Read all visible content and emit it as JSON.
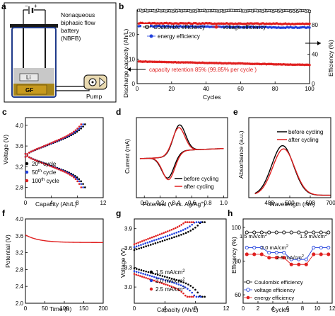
{
  "panels": {
    "a": {
      "letter": "a",
      "battery_text": [
        "Nonaqueous",
        "biphasic flow",
        "battery",
        "(NBFB)"
      ],
      "electrode_li": "Li",
      "electrode_gf": "GF",
      "pump_label": "Pump",
      "colors": {
        "electrolyte_top": "#c8c8c8",
        "electrolyte_bottom": "#a8861a",
        "vessel": "#1f3a8a",
        "lid": "#1a1a1a",
        "gf": "#c79a1e",
        "pump_fill": "#e8d9b0"
      }
    },
    "b": {
      "letter": "b",
      "ylabel_left": "Discharge capacity (Ah/L)",
      "ylabel_right": "Efficiency (%)",
      "xlabel": "Cycles",
      "legend": {
        "ce": "Coulombic efficiency",
        "ve": "voltage efficiency",
        "ee": "energy efficiency"
      },
      "annotation": "capacity retention 85% (99.85% per cycle )"
    },
    "c": {
      "letter": "c",
      "xlabel": "Capacity (Ah/L)",
      "ylabel": "Voltage (V)",
      "legend": [
        {
          "base": "20",
          "sup": "th",
          "rest": " cycle"
        },
        {
          "base": "50",
          "sup": "th",
          "rest": " cycle"
        },
        {
          "base": "100",
          "sup": "th",
          "rest": " cycle"
        }
      ]
    },
    "d": {
      "letter": "d",
      "xlabel": "Potential (V vs. Ag/Ag",
      "xlabel_sup": "+",
      "xlabel_end": ")",
      "ylabel": "Current (mA)",
      "legend": [
        "before cycling",
        "after cycling"
      ]
    },
    "e": {
      "letter": "e",
      "xlabel": "Wavelength (nm)",
      "ylabel": "Absorbance (a.u.)",
      "legend": [
        "before cycling",
        "after cycling"
      ]
    },
    "f": {
      "letter": "f",
      "xlabel": "Time (h)",
      "ylabel": "Potential (V)"
    },
    "g": {
      "letter": "g",
      "xlabel": "Capacity (Ah/L)",
      "ylabel": "Voltage (V)",
      "legend": [
        {
          "base": "1.5 mA/cm",
          "sup": "2"
        },
        {
          "base": "2.0 mA/cm",
          "sup": "2"
        },
        {
          "base": "2.5 mA/cm",
          "sup": "2"
        }
      ]
    },
    "h": {
      "letter": "h",
      "xlabel": "Cycles",
      "ylabel": "Efficiency (%)",
      "rate_labels": [
        {
          "base": "1.5 mA/cm",
          "sup": "2"
        },
        {
          "base": "2.0 mA/cm",
          "sup": "2"
        },
        {
          "base": "2.5 mA/cm",
          "sup": "2"
        },
        {
          "base": "1.5 mA/cm",
          "sup": "2"
        }
      ],
      "legend": {
        "ce": "Coulombic efficiency",
        "ve": "voltage efficiency",
        "ee": "energy efficiency"
      }
    }
  },
  "chart_data": [
    {
      "panel": "b",
      "type": "scatter",
      "x": {
        "range": [
          0,
          100
        ],
        "ticks": [
          0,
          20,
          40,
          60,
          80,
          100
        ]
      },
      "y_left": {
        "range": [
          0,
          30
        ],
        "ticks": [
          0,
          10,
          20
        ]
      },
      "y_right": {
        "range": [
          0,
          100
        ],
        "ticks": [
          0,
          40,
          80
        ]
      },
      "series": [
        {
          "name": "Coulombic efficiency",
          "axis": "right",
          "color": "#000000",
          "marker": "square",
          "start": 99.0,
          "end": 98.8,
          "noise": 1.2
        },
        {
          "name": "voltage efficiency",
          "axis": "right",
          "color": "#e02020",
          "marker": "circle",
          "start": 82.0,
          "end": 81.0,
          "noise": 1.2
        },
        {
          "name": "energy efficiency",
          "axis": "right",
          "color": "#1f3fdd",
          "marker": "circle",
          "start": 78.0,
          "end": 76.0,
          "noise": 1.2
        },
        {
          "name": "Discharge capacity",
          "axis": "left",
          "color": "#e02020",
          "marker": "circle",
          "start": 9.0,
          "end": 7.6,
          "noise": 0.15
        }
      ]
    },
    {
      "panel": "c",
      "type": "line",
      "x": {
        "range": [
          0,
          12
        ],
        "ticks": [
          0,
          4,
          8,
          12
        ]
      },
      "y": {
        "range": [
          2.6,
          4.15
        ],
        "ticks": [
          2.8,
          3.2,
          3.6,
          4.0
        ]
      },
      "series": [
        {
          "name": "20th cycle",
          "color": "#000000",
          "cap": 9.2
        },
        {
          "name": "50th cycle",
          "color": "#1f3fdd",
          "cap": 8.9
        },
        {
          "name": "100th cycle",
          "color": "#e02020",
          "cap": 8.6
        }
      ]
    },
    {
      "panel": "d",
      "type": "line",
      "x": {
        "range": [
          -0.1,
          1.05
        ],
        "ticks": [
          0.0,
          0.2,
          0.4,
          0.6,
          0.8,
          1.0
        ]
      },
      "y": {
        "range": [
          -0.08,
          0.065
        ],
        "ticks": []
      },
      "series": [
        {
          "name": "before cycling",
          "color": "#000000",
          "ipa": 0.052,
          "ipc": -0.043,
          "epa": 0.44,
          "epc": 0.3
        },
        {
          "name": "after cycling",
          "color": "#e02020",
          "ipa": 0.047,
          "ipc": -0.046,
          "epa": 0.43,
          "epc": 0.31
        }
      ]
    },
    {
      "panel": "e",
      "type": "line",
      "x": {
        "range": [
          300,
          700
        ],
        "ticks": [
          400,
          500,
          600,
          700
        ]
      },
      "y": {
        "range": [
          0,
          1.0
        ],
        "ticks": []
      },
      "series": [
        {
          "name": "before cycling",
          "color": "#000000",
          "peak": 465,
          "height": 0.62
        },
        {
          "name": "after cycling",
          "color": "#e02020",
          "peak": 470,
          "height": 0.58
        }
      ]
    },
    {
      "panel": "f",
      "type": "line",
      "x": {
        "range": [
          0,
          200
        ],
        "ticks": [
          0,
          50,
          100,
          150,
          200
        ]
      },
      "y": {
        "range": [
          2.0,
          4.0
        ],
        "ticks": [
          2.0,
          2.4,
          2.8,
          3.2,
          3.6,
          4.0
        ]
      },
      "series": [
        {
          "name": "Potential",
          "color": "#e02020",
          "start": 3.62,
          "end": 3.44
        }
      ]
    },
    {
      "panel": "g",
      "type": "line",
      "x": {
        "range": [
          0,
          12
        ],
        "ticks": [
          0,
          4,
          8,
          12
        ]
      },
      "y": {
        "range": [
          2.75,
          4.05
        ],
        "ticks": [
          3.0,
          3.3,
          3.6,
          3.9
        ]
      },
      "series": [
        {
          "name": "1.5 mA/cm2",
          "color": "#000000",
          "cap": 9.2,
          "pol": 0.28
        },
        {
          "name": "2.0 mA/cm2",
          "color": "#1f3fdd",
          "cap": 8.7,
          "pol": 0.37
        },
        {
          "name": "2.5 mA/cm2",
          "color": "#e02020",
          "cap": 7.7,
          "pol": 0.46
        }
      ]
    },
    {
      "panel": "h",
      "type": "line",
      "x": {
        "range": [
          0,
          12
        ],
        "ticks": [
          0,
          2,
          4,
          6,
          8,
          10,
          12
        ]
      },
      "y": {
        "range": [
          55,
          105
        ],
        "ticks": [
          60,
          80,
          100
        ]
      },
      "series": [
        {
          "name": "Coulombic efficiency",
          "color": "#000000",
          "values": [
            97,
            97,
            97,
            97,
            97,
            97,
            97,
            97,
            97,
            97,
            97,
            97
          ]
        },
        {
          "name": "voltage efficiency",
          "color": "#1f3fdd",
          "values": [
            88,
            88,
            88,
            85,
            85,
            85,
            81,
            81,
            81,
            88,
            88,
            88
          ]
        },
        {
          "name": "energy efficiency",
          "color": "#e02020",
          "values": [
            84,
            84,
            84,
            82,
            82,
            82,
            78,
            78,
            78,
            84,
            84,
            84
          ]
        }
      ]
    }
  ]
}
